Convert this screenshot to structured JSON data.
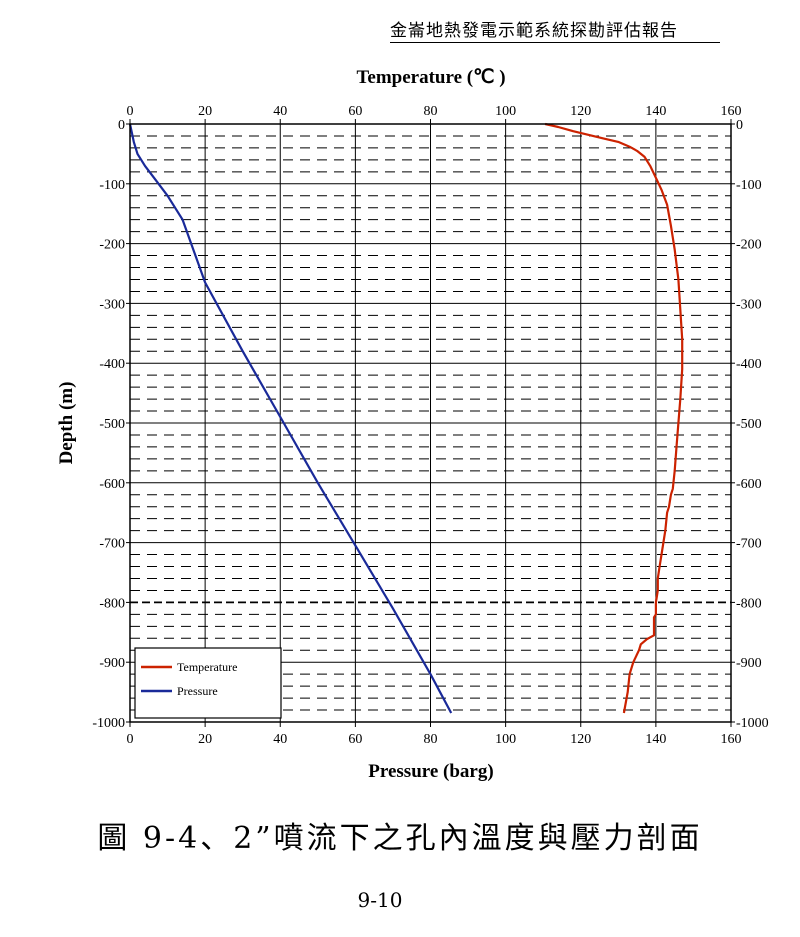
{
  "header": {
    "title": "金崙地熱發電示範系統探勘評估報告"
  },
  "figure": {
    "caption": "圖  9-4、2”噴流下之孔內溫度與壓力剖面",
    "page_number": "9-10"
  },
  "chart_data": {
    "type": "line",
    "top_xlabel": "Temperature (℃ )",
    "bottom_xlabel": "Pressure (barg)",
    "ylabel": "Depth (m)",
    "xlim": [
      0,
      160
    ],
    "ylim": [
      -1000,
      0
    ],
    "x_ticks": [
      0,
      20,
      40,
      60,
      80,
      100,
      120,
      140,
      160
    ],
    "y_ticks": [
      0,
      -100,
      -200,
      -300,
      -400,
      -500,
      -600,
      -700,
      -800,
      -900,
      -1000
    ],
    "grid": true,
    "legend_position": "bottom-left",
    "series": [
      {
        "name": "Temperature",
        "axis": "top",
        "color": "#cc2200",
        "x": [
          110.5,
          114,
          118,
          122,
          126,
          130,
          133,
          135,
          137,
          138.5,
          140,
          141.5,
          143,
          144,
          145,
          146,
          146.5,
          147,
          147,
          146.5,
          146,
          145.5,
          145,
          144.5,
          144,
          143.5,
          143,
          142.5,
          142,
          141.5,
          141,
          140.5,
          140.5,
          140,
          140,
          139.5,
          139.5,
          138,
          137.5,
          136,
          135.5,
          134,
          133,
          132.5,
          131.5
        ],
        "y": [
          0,
          -5,
          -12,
          -18,
          -24,
          -30,
          -38,
          -45,
          -55,
          -70,
          -90,
          -110,
          -135,
          -170,
          -210,
          -260,
          -310,
          -360,
          -410,
          -460,
          -500,
          -540,
          -580,
          -610,
          -620,
          -640,
          -650,
          -680,
          -700,
          -720,
          -740,
          -760,
          -780,
          -800,
          -820,
          -825,
          -855,
          -860,
          -862,
          -870,
          -880,
          -900,
          -920,
          -950,
          -985
        ]
      },
      {
        "name": "Pressure",
        "axis": "bottom",
        "color": "#1a2a99",
        "x": [
          0,
          1,
          2,
          4,
          7,
          10,
          14,
          20,
          30,
          40,
          50,
          60,
          70,
          80,
          85.5
        ],
        "y": [
          0,
          -30,
          -50,
          -70,
          -95,
          -120,
          -160,
          -265,
          -380,
          -490,
          -600,
          -705,
          -810,
          -920,
          -985
        ]
      }
    ]
  }
}
